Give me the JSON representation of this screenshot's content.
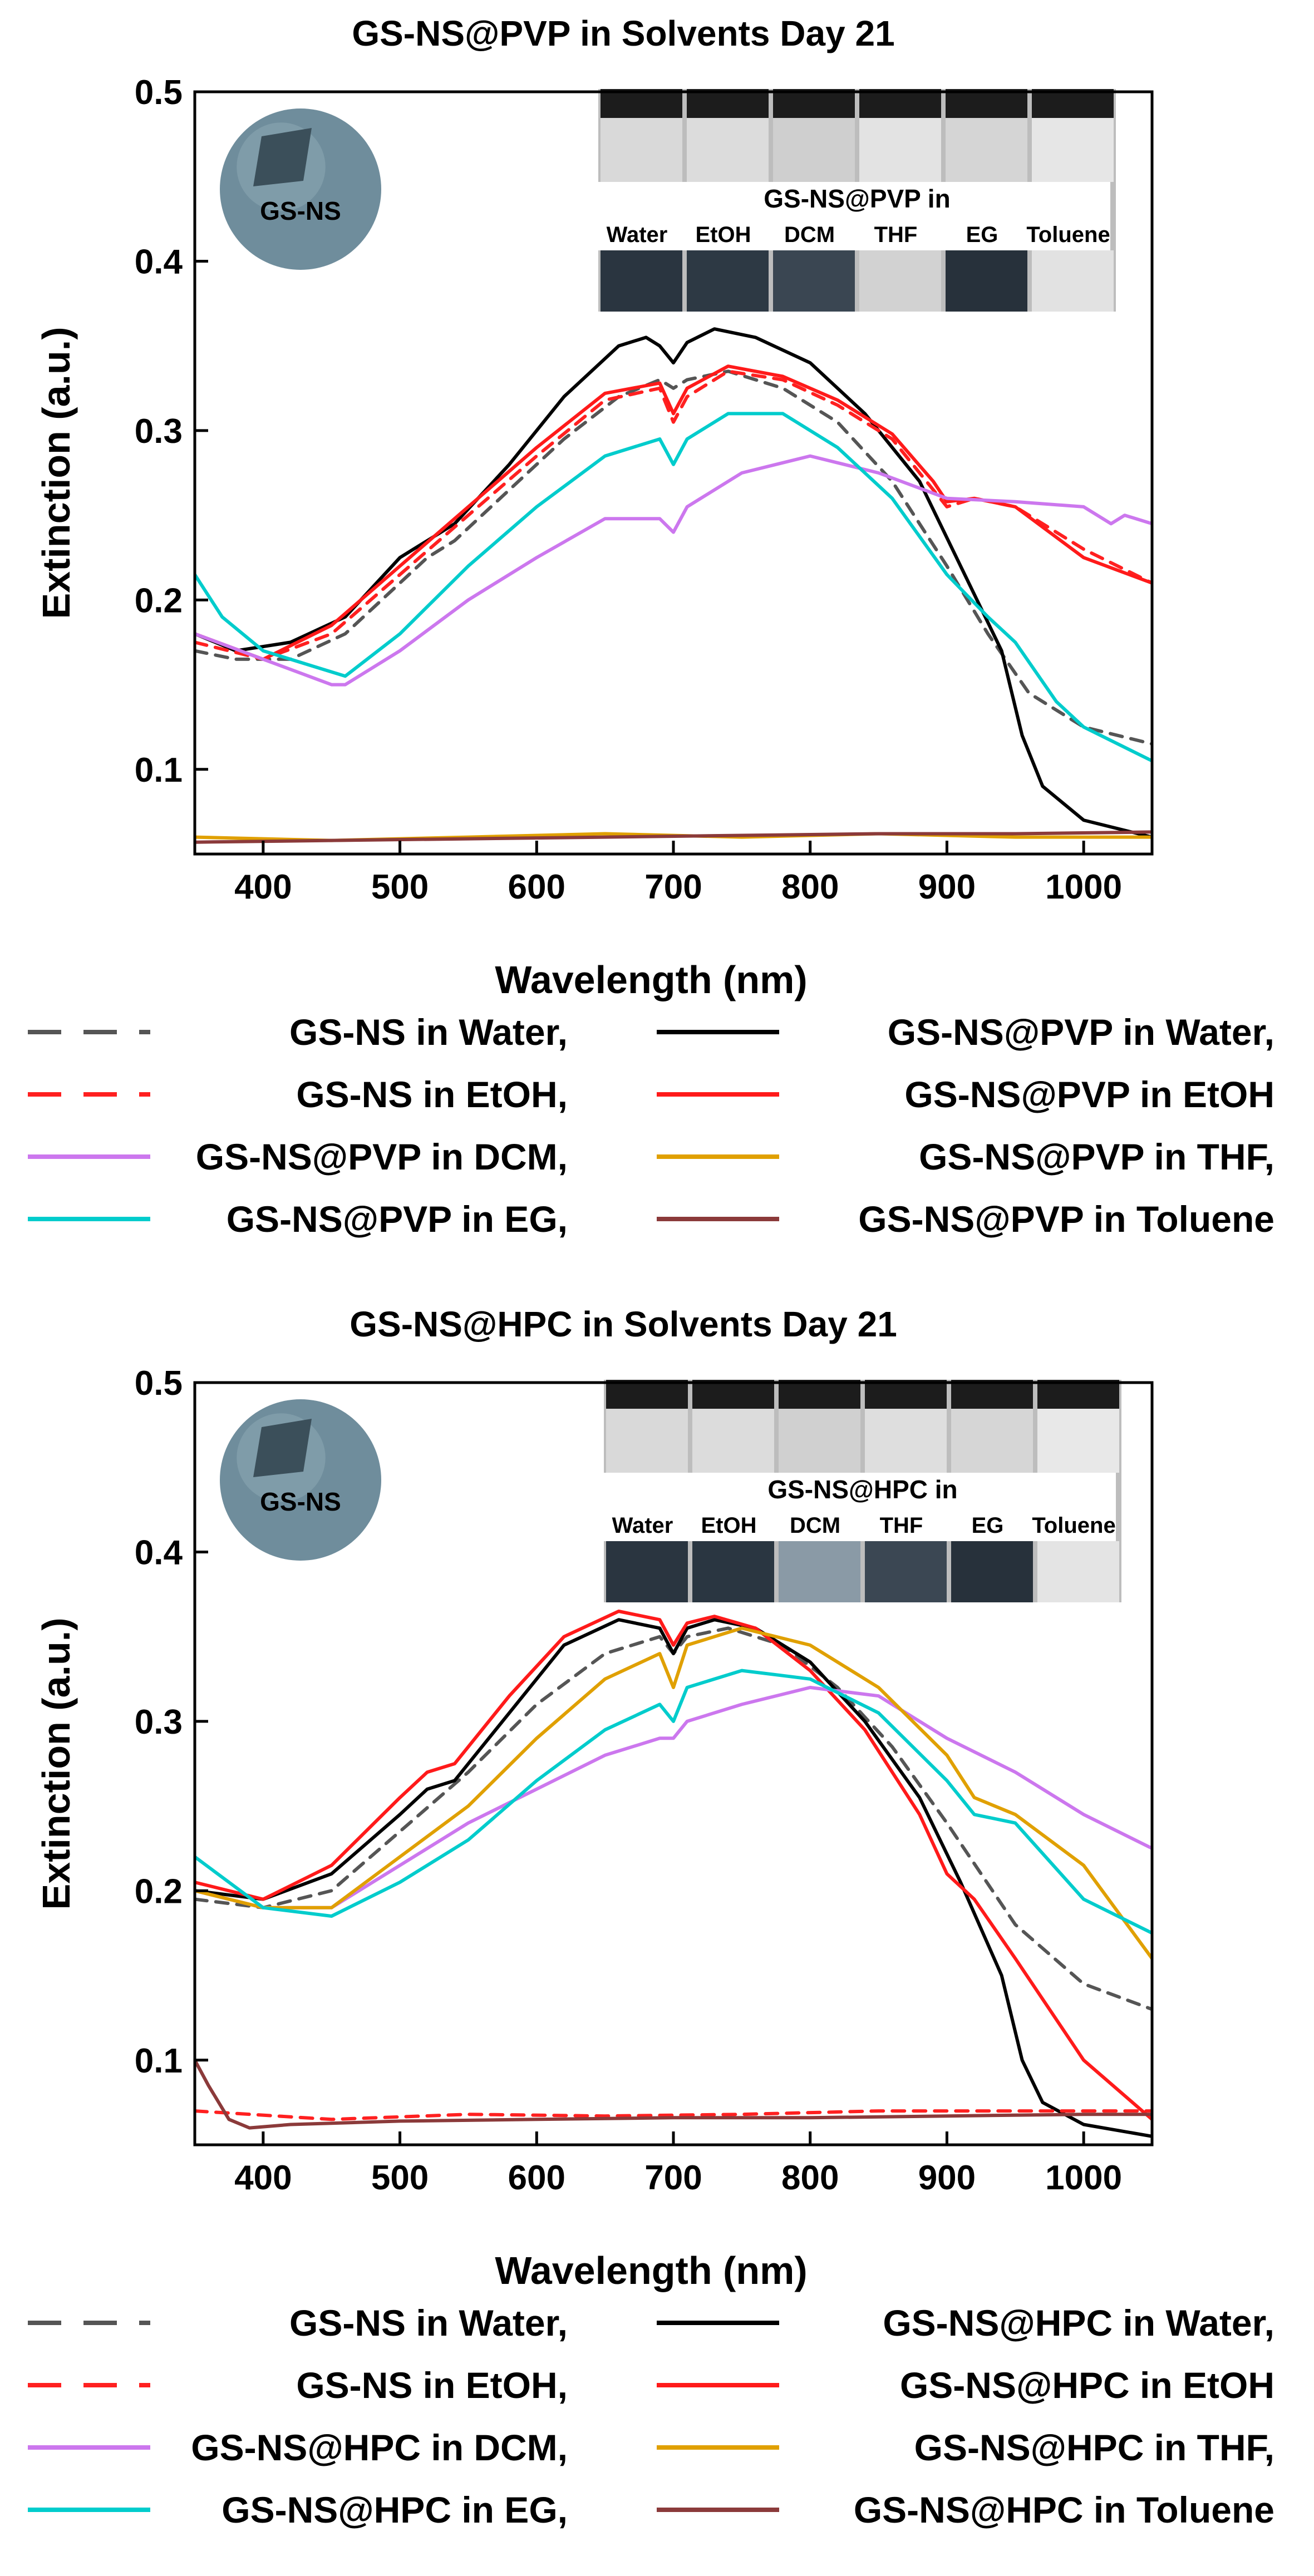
{
  "chart_data": [
    {
      "type": "line",
      "title": "GS-NS@PVP in Solvents Day 21",
      "xlabel": "Wavelength (nm)",
      "ylabel": "Extinction (a.u.)",
      "xlim": [
        350,
        1050
      ],
      "ylim": [
        0.05,
        0.5
      ],
      "xticks": [
        400,
        500,
        600,
        700,
        800,
        900,
        1000
      ],
      "yticks": [
        0.1,
        0.2,
        0.3,
        0.4,
        0.5
      ],
      "grid": false,
      "legend_position": "below",
      "sphere_label": "GS-NS",
      "inset": {
        "title": "GS-NS@PVP in",
        "vials": [
          "Water",
          "EtOH",
          "DCM",
          "THF",
          "EG",
          "Toluene"
        ],
        "top_colors": [
          "#d9d9d9",
          "#dcdcdc",
          "#cfcfcf",
          "#e3e3e3",
          "#d5d5d5",
          "#e6e6e6"
        ],
        "bottom_colors": [
          "#2a3540",
          "#2d3944",
          "#3a4652",
          "#d2d2d2",
          "#27313b",
          "#e2e2e2"
        ]
      },
      "series": [
        {
          "name": "GS-NS in Water,",
          "color": "#555555",
          "dash": true,
          "x": [
            350,
            380,
            420,
            460,
            500,
            520,
            540,
            580,
            620,
            660,
            690,
            700,
            710,
            740,
            780,
            820,
            860,
            900,
            930,
            960,
            1000,
            1050
          ],
          "y": [
            0.17,
            0.165,
            0.165,
            0.18,
            0.21,
            0.225,
            0.235,
            0.265,
            0.295,
            0.32,
            0.33,
            0.325,
            0.33,
            0.335,
            0.325,
            0.305,
            0.27,
            0.22,
            0.18,
            0.145,
            0.125,
            0.115
          ]
        },
        {
          "name": "GS-NS@PVP in Water,",
          "color": "#000000",
          "dash": false,
          "x": [
            350,
            380,
            420,
            460,
            500,
            520,
            540,
            580,
            620,
            660,
            680,
            690,
            700,
            710,
            730,
            760,
            800,
            840,
            880,
            910,
            940,
            955,
            970,
            1000,
            1050
          ],
          "y": [
            0.18,
            0.17,
            0.175,
            0.19,
            0.225,
            0.235,
            0.245,
            0.28,
            0.32,
            0.35,
            0.355,
            0.35,
            0.34,
            0.352,
            0.36,
            0.355,
            0.34,
            0.31,
            0.27,
            0.22,
            0.17,
            0.12,
            0.09,
            0.07,
            0.06
          ]
        },
        {
          "name": "GS-NS in EtOH,",
          "color": "#ff2020",
          "dash": true,
          "x": [
            350,
            400,
            450,
            500,
            550,
            600,
            650,
            690,
            700,
            710,
            740,
            780,
            820,
            860,
            890,
            900,
            920,
            950,
            1000,
            1050
          ],
          "y": [
            0.175,
            0.165,
            0.18,
            0.215,
            0.25,
            0.285,
            0.318,
            0.325,
            0.305,
            0.32,
            0.335,
            0.33,
            0.315,
            0.295,
            0.265,
            0.255,
            0.26,
            0.255,
            0.23,
            0.21
          ]
        },
        {
          "name": "GS-NS@PVP in EtOH",
          "color": "#ff1a1a",
          "dash": false,
          "x": [
            350,
            400,
            450,
            500,
            550,
            600,
            650,
            690,
            700,
            710,
            740,
            780,
            820,
            860,
            890,
            900,
            920,
            950,
            1000,
            1050
          ],
          "y": [
            0.18,
            0.165,
            0.185,
            0.22,
            0.255,
            0.29,
            0.322,
            0.328,
            0.31,
            0.325,
            0.338,
            0.332,
            0.318,
            0.298,
            0.27,
            0.258,
            0.26,
            0.255,
            0.225,
            0.21
          ]
        },
        {
          "name": "GS-NS@PVP in DCM,",
          "color": "#cc77ee",
          "dash": false,
          "x": [
            350,
            400,
            450,
            460,
            500,
            550,
            600,
            650,
            690,
            700,
            710,
            750,
            800,
            850,
            900,
            950,
            1000,
            1020,
            1030,
            1050
          ],
          "y": [
            0.18,
            0.165,
            0.15,
            0.15,
            0.17,
            0.2,
            0.225,
            0.248,
            0.248,
            0.24,
            0.255,
            0.275,
            0.285,
            0.275,
            0.26,
            0.258,
            0.255,
            0.245,
            0.25,
            0.245
          ]
        },
        {
          "name": "GS-NS@PVP in THF,",
          "color": "#e0a000",
          "dash": false,
          "x": [
            350,
            450,
            550,
            650,
            750,
            850,
            950,
            1050
          ],
          "y": [
            0.06,
            0.058,
            0.06,
            0.062,
            0.06,
            0.062,
            0.06,
            0.06
          ]
        },
        {
          "name": "GS-NS@PVP in EG,",
          "color": "#00cccc",
          "dash": false,
          "x": [
            350,
            370,
            400,
            440,
            460,
            500,
            550,
            600,
            650,
            690,
            700,
            710,
            740,
            780,
            820,
            860,
            900,
            930,
            950,
            980,
            1000,
            1050
          ],
          "y": [
            0.215,
            0.19,
            0.17,
            0.16,
            0.155,
            0.18,
            0.22,
            0.255,
            0.285,
            0.295,
            0.28,
            0.295,
            0.31,
            0.31,
            0.29,
            0.26,
            0.215,
            0.19,
            0.175,
            0.14,
            0.125,
            0.105
          ]
        },
        {
          "name": "GS-NS@PVP in Toluene",
          "color": "#8b3a3a",
          "dash": false,
          "x": [
            350,
            450,
            550,
            650,
            750,
            850,
            950,
            1050
          ],
          "y": [
            0.057,
            0.058,
            0.059,
            0.06,
            0.061,
            0.062,
            0.062,
            0.063
          ]
        }
      ]
    },
    {
      "type": "line",
      "title": "GS-NS@HPC in Solvents Day 21",
      "xlabel": "Wavelength (nm)",
      "ylabel": "Extinction (a.u.)",
      "xlim": [
        350,
        1050
      ],
      "ylim": [
        0.05,
        0.5
      ],
      "xticks": [
        400,
        500,
        600,
        700,
        800,
        900,
        1000
      ],
      "yticks": [
        0.1,
        0.2,
        0.3,
        0.4,
        0.5
      ],
      "grid": false,
      "legend_position": "below",
      "sphere_label": "GS-NS",
      "inset": {
        "title": "GS-NS@HPC in",
        "vials": [
          "Water",
          "EtOH",
          "DCM",
          "THF",
          "EG",
          "Toluene"
        ],
        "top_colors": [
          "#d9d9d9",
          "#dcdcdc",
          "#d0d0d0",
          "#dedede",
          "#d6d6d6",
          "#e8e8e8"
        ],
        "bottom_colors": [
          "#2a3540",
          "#2a3641",
          "#8a9aa6",
          "#3b4753",
          "#27313b",
          "#e4e4e4"
        ]
      },
      "series": [
        {
          "name": "GS-NS in Water,",
          "color": "#555555",
          "dash": true,
          "x": [
            350,
            400,
            450,
            500,
            550,
            600,
            650,
            690,
            700,
            710,
            740,
            780,
            820,
            860,
            900,
            950,
            1000,
            1050
          ],
          "y": [
            0.195,
            0.19,
            0.2,
            0.235,
            0.27,
            0.31,
            0.34,
            0.35,
            0.34,
            0.35,
            0.355,
            0.345,
            0.32,
            0.285,
            0.24,
            0.18,
            0.145,
            0.13
          ]
        },
        {
          "name": "GS-NS@HPC in Water,",
          "color": "#000000",
          "dash": false,
          "x": [
            350,
            400,
            450,
            500,
            520,
            540,
            580,
            620,
            660,
            690,
            700,
            710,
            730,
            760,
            800,
            840,
            880,
            910,
            940,
            955,
            970,
            1000,
            1050
          ],
          "y": [
            0.2,
            0.195,
            0.21,
            0.245,
            0.26,
            0.265,
            0.305,
            0.345,
            0.36,
            0.355,
            0.34,
            0.355,
            0.36,
            0.355,
            0.335,
            0.3,
            0.255,
            0.205,
            0.15,
            0.1,
            0.075,
            0.062,
            0.055
          ]
        },
        {
          "name": "GS-NS in EtOH,",
          "color": "#ff2020",
          "dash": true,
          "x": [
            350,
            450,
            550,
            650,
            750,
            850,
            950,
            1050
          ],
          "y": [
            0.07,
            0.065,
            0.068,
            0.067,
            0.068,
            0.07,
            0.07,
            0.07
          ]
        },
        {
          "name": "GS-NS@HPC in EtOH",
          "color": "#ff1a1a",
          "dash": false,
          "x": [
            350,
            400,
            450,
            500,
            520,
            540,
            580,
            620,
            660,
            690,
            700,
            710,
            730,
            760,
            800,
            840,
            880,
            900,
            920,
            950,
            1000,
            1050
          ],
          "y": [
            0.205,
            0.195,
            0.215,
            0.255,
            0.27,
            0.275,
            0.315,
            0.35,
            0.365,
            0.36,
            0.345,
            0.358,
            0.362,
            0.355,
            0.33,
            0.295,
            0.245,
            0.21,
            0.195,
            0.16,
            0.1,
            0.065
          ]
        },
        {
          "name": "GS-NS@HPC in DCM,",
          "color": "#cc77ee",
          "dash": false,
          "x": [
            350,
            400,
            450,
            500,
            550,
            600,
            650,
            690,
            700,
            710,
            750,
            800,
            850,
            900,
            950,
            1000,
            1050
          ],
          "y": [
            0.2,
            0.19,
            0.19,
            0.215,
            0.24,
            0.26,
            0.28,
            0.29,
            0.29,
            0.3,
            0.31,
            0.32,
            0.315,
            0.29,
            0.27,
            0.245,
            0.225
          ]
        },
        {
          "name": "GS-NS@HPC in THF,",
          "color": "#e0a000",
          "dash": false,
          "x": [
            350,
            400,
            450,
            500,
            550,
            600,
            650,
            690,
            700,
            710,
            750,
            800,
            850,
            900,
            920,
            950,
            1000,
            1050
          ],
          "y": [
            0.2,
            0.19,
            0.19,
            0.22,
            0.25,
            0.29,
            0.325,
            0.34,
            0.32,
            0.345,
            0.355,
            0.345,
            0.32,
            0.28,
            0.255,
            0.245,
            0.215,
            0.16
          ]
        },
        {
          "name": "GS-NS@HPC in EG,",
          "color": "#00cccc",
          "dash": false,
          "x": [
            350,
            400,
            450,
            500,
            550,
            600,
            650,
            690,
            700,
            710,
            750,
            800,
            850,
            900,
            920,
            950,
            1000,
            1050
          ],
          "y": [
            0.22,
            0.19,
            0.185,
            0.205,
            0.23,
            0.265,
            0.295,
            0.31,
            0.3,
            0.32,
            0.33,
            0.325,
            0.305,
            0.265,
            0.245,
            0.24,
            0.195,
            0.175
          ]
        },
        {
          "name": "GS-NS@HPC in Toluene",
          "color": "#8b3a3a",
          "dash": false,
          "x": [
            350,
            360,
            375,
            390,
            420,
            500,
            600,
            700,
            800,
            900,
            1000,
            1050
          ],
          "y": [
            0.1,
            0.085,
            0.065,
            0.06,
            0.062,
            0.064,
            0.065,
            0.066,
            0.066,
            0.067,
            0.068,
            0.068
          ]
        }
      ]
    }
  ]
}
